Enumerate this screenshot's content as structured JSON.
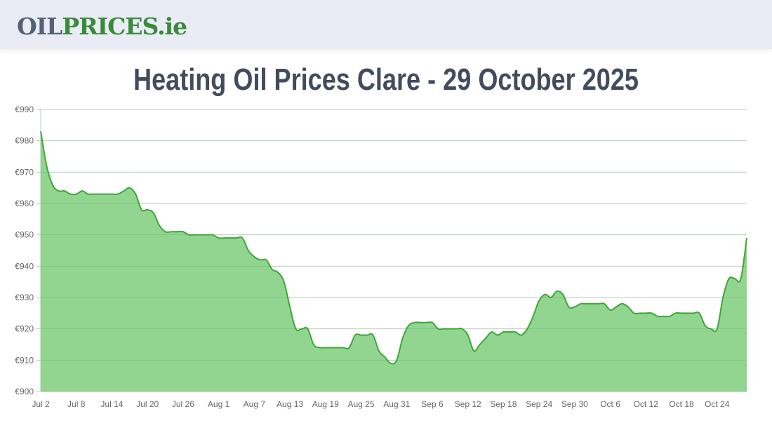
{
  "header": {
    "logo_part1": "OIL",
    "logo_part2": "PRICES.ie"
  },
  "page": {
    "title": "Heating Oil Prices Clare - 29 October 2025"
  },
  "colors": {
    "header_bg": "#e9ecf5",
    "logo_gray": "#556275",
    "logo_green": "#3a8a3c",
    "title": "#434c5e",
    "line": "#3aaa35",
    "fill": "#91d591",
    "grid": "#e0e0e0"
  },
  "chart_data": {
    "type": "area",
    "title": "Heating Oil Prices Clare - 29 October 2025",
    "xlabel": "",
    "ylabel": "",
    "ylim": [
      900,
      990
    ],
    "y_ticks": [
      "€900",
      "€910",
      "€920",
      "€930",
      "€940",
      "€950",
      "€960",
      "€970",
      "€980",
      "€990"
    ],
    "x_tick_labels": [
      "Jul 2",
      "Jul 8",
      "Jul 14",
      "Jul 20",
      "Jul 26",
      "Aug 1",
      "Aug 7",
      "Aug 13",
      "Aug 19",
      "Aug 25",
      "Aug 31",
      "Sep 6",
      "Sep 12",
      "Sep 18",
      "Sep 24",
      "Sep 30",
      "Oct 6",
      "Oct 12",
      "Oct 18",
      "Oct 24"
    ],
    "grid": true,
    "legend": "none",
    "start_date": "Jul 2",
    "end_date": "Oct 29",
    "series": [
      {
        "name": "Heating Oil Price (Clare)",
        "values": [
          983,
          972,
          966,
          964,
          964,
          963,
          963,
          964,
          963,
          963,
          963,
          963,
          963,
          963,
          964,
          965,
          963,
          958,
          958,
          957,
          953,
          951,
          951,
          951,
          951,
          950,
          950,
          950,
          950,
          950,
          949,
          949,
          949,
          949,
          949,
          945,
          943,
          942,
          942,
          939,
          938,
          935,
          927,
          920,
          920,
          920,
          915,
          914,
          914,
          914,
          914,
          914,
          914,
          918,
          918,
          918,
          918,
          913,
          911,
          909,
          910,
          917,
          921,
          922,
          922,
          922,
          922,
          920,
          920,
          920,
          920,
          920,
          918,
          913,
          915,
          917,
          919,
          918,
          919,
          919,
          919,
          918,
          920,
          924,
          929,
          931,
          930,
          932,
          931,
          927,
          927,
          928,
          928,
          928,
          928,
          928,
          926,
          927,
          928,
          927,
          925,
          925,
          925,
          925,
          924,
          924,
          924,
          925,
          925,
          925,
          925,
          925,
          921,
          920,
          920,
          930,
          936,
          936,
          936,
          949
        ]
      }
    ]
  }
}
